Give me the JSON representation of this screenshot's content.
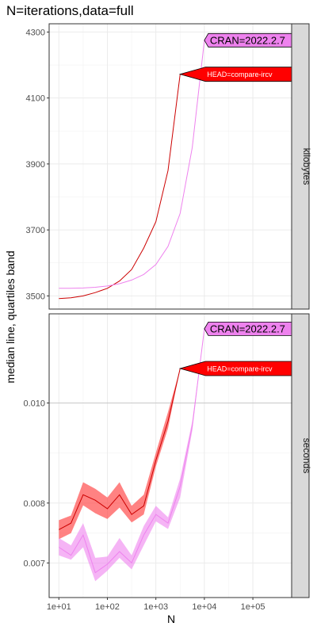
{
  "chart_data": {
    "type": "line",
    "title": "N=iterations,data=full",
    "xlabel": "N",
    "ylabel": "median line, quartiles band",
    "x_scale": "log10",
    "x_ticks": [
      10,
      100,
      1000,
      10000,
      100000
    ],
    "x_tick_labels": [
      "1e+01",
      "1e+02",
      "1e+03",
      "1e+04",
      "1e+05"
    ],
    "x_range": [
      6.3,
      630000
    ],
    "grid": true,
    "legend": "direct labels at line ends",
    "colors": {
      "CRAN": "#ee82ee",
      "HEAD": "#ff0000",
      "HEAD_line": "#cc0000",
      "CRAN_band": "#ee82ee",
      "HEAD_band": "#ff4d4d",
      "strip_bg": "#d9d9d9",
      "grid": "#ebebeb"
    },
    "panels": [
      {
        "strip": "kilobytes",
        "y_scale": "linear",
        "y_range": [
          3460,
          4325
        ],
        "y_ticks": [
          3500,
          3700,
          3900,
          4100,
          4300
        ],
        "y_tick_labels": [
          "3500",
          "3700",
          "3900",
          "4100",
          "4300"
        ],
        "series": [
          {
            "name": "HEAD=compare-ircv",
            "x": [
              10,
              17.8,
              31.6,
              56.2,
              100,
              178,
              316,
              562,
              1000,
              1780,
              3160
            ],
            "y": [
              3492,
              3494,
              3500,
              3510,
              3523,
              3545,
              3580,
              3645,
              3725,
              3880,
              4172
            ]
          },
          {
            "name": "CRAN=2022.2.7",
            "x": [
              10,
              17.8,
              31.6,
              56.2,
              100,
              178,
              316,
              562,
              1000,
              1780,
              3160,
              5620,
              10000
            ],
            "y": [
              3523,
              3523,
              3524,
              3526,
              3530,
              3537,
              3548,
              3565,
              3595,
              3650,
              3750,
              3950,
              4275
            ]
          }
        ]
      },
      {
        "strip": "seconds",
        "y_scale": "log10",
        "y_range": [
          0.00648,
          0.0122
        ],
        "y_ticks": [
          0.007,
          0.008,
          0.01
        ],
        "y_tick_labels": [
          "0.007",
          "0.008",
          "0.010"
        ],
        "series": [
          {
            "name": "HEAD=compare-ircv",
            "x": [
              10,
              17.8,
              31.6,
              56.2,
              100,
              178,
              316,
              562,
              1000,
              1780,
              3160
            ],
            "y": [
              0.00754,
              0.00765,
              0.00815,
              0.00805,
              0.0079,
              0.00815,
              0.0078,
              0.00795,
              0.0088,
              0.0096,
              0.0108
            ],
            "q1": [
              0.00738,
              0.00748,
              0.00796,
              0.00782,
              0.00772,
              0.00792,
              0.00766,
              0.0078,
              0.00868,
              0.00945,
              0.0108
            ],
            "q3": [
              0.0077,
              0.00778,
              0.00838,
              0.00826,
              0.0081,
              0.00838,
              0.00795,
              0.00815,
              0.00895,
              0.0098,
              0.0108
            ]
          },
          {
            "name": "CRAN=2022.2.7",
            "x": [
              10,
              17.8,
              31.6,
              56.2,
              100,
              178,
              316,
              562,
              1000,
              1780,
              3160,
              5620,
              10000
            ],
            "y": [
              0.00725,
              0.00712,
              0.00745,
              0.00685,
              0.00698,
              0.00718,
              0.007,
              0.00745,
              0.0078,
              0.00765,
              0.0083,
              0.0095,
              0.0118
            ],
            "q1": [
              0.00712,
              0.00705,
              0.00725,
              0.00672,
              0.00688,
              0.00708,
              0.0069,
              0.00728,
              0.00768,
              0.00755,
              0.0081,
              0.0094,
              0.0118
            ],
            "q3": [
              0.0074,
              0.00728,
              0.00765,
              0.00708,
              0.0071,
              0.0074,
              0.00712,
              0.0076,
              0.00795,
              0.00775,
              0.00845,
              0.0096,
              0.0118
            ]
          }
        ]
      }
    ]
  }
}
